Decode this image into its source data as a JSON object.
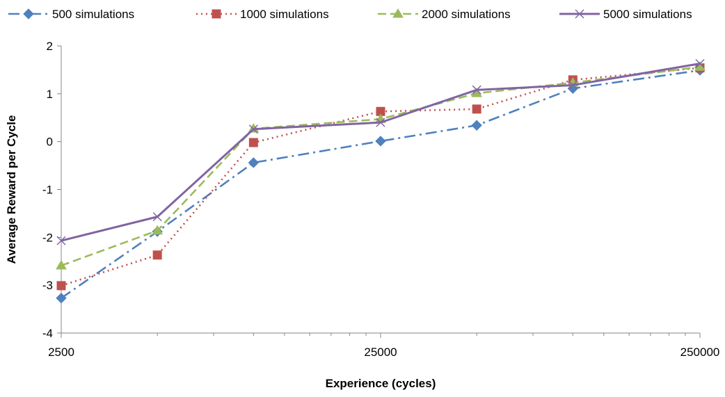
{
  "chart_data": {
    "type": "line",
    "xlabel": "Experience (cycles)",
    "ylabel": "Average Reward per Cycle",
    "x_scale": "log",
    "xlim": [
      2500,
      250000
    ],
    "ylim": [
      -4,
      2
    ],
    "x_ticks": [
      "2500",
      "25000",
      "250000"
    ],
    "y_ticks": [
      "2",
      "1",
      "0",
      "-1",
      "-2",
      "-3",
      "-4"
    ],
    "grid": false,
    "legend_position": "top",
    "x": [
      2500,
      5000,
      10000,
      25000,
      50000,
      100000,
      250000
    ],
    "series": [
      {
        "name": "500 simulations",
        "color": "#4F81BD",
        "line_style": "dash-dot",
        "marker": "diamond",
        "values": [
          -3.27,
          -1.88,
          -0.44,
          0.01,
          0.34,
          1.11,
          1.49
        ]
      },
      {
        "name": "1000 simulations",
        "color": "#C0504D",
        "line_style": "dotted",
        "marker": "square",
        "values": [
          -3.01,
          -2.37,
          -0.02,
          0.63,
          0.68,
          1.29,
          1.54
        ]
      },
      {
        "name": "2000 simulations",
        "color": "#9BBB59",
        "line_style": "dashed",
        "marker": "triangle",
        "values": [
          -2.59,
          -1.86,
          0.27,
          0.47,
          1.01,
          1.23,
          1.56
        ]
      },
      {
        "name": "5000 simulations",
        "color": "#8064A2",
        "line_style": "solid",
        "marker": "x",
        "values": [
          -2.07,
          -1.57,
          0.26,
          0.4,
          1.08,
          1.18,
          1.63
        ]
      }
    ]
  }
}
